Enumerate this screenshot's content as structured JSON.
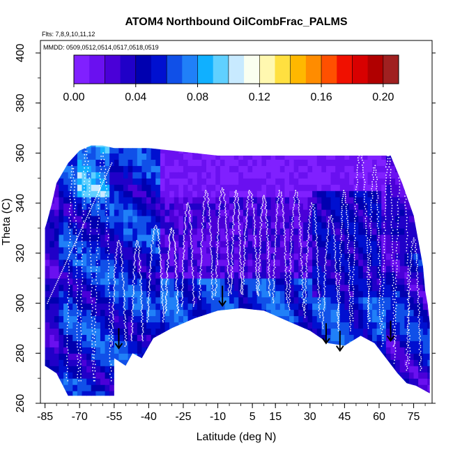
{
  "chart_data": {
    "type": "heatmap",
    "title": "ATOM4 Northbound OilCombFrac_PALMS",
    "subtitle_flights": "Flts: 7,8,9,10,11,12",
    "subtitle_dates": "MMDD: 0509,0512,0514,0517,0518,0519",
    "xlabel": "Latitude (deg N)",
    "ylabel": "Theta (C)",
    "xlim": [
      -87,
      83
    ],
    "ylim": [
      260,
      405
    ],
    "x_ticks": [
      -85,
      -70,
      -55,
      -40,
      -25,
      -10,
      5,
      15,
      30,
      45,
      60,
      75
    ],
    "x_tick_labels": [
      "-85",
      "-70",
      "-55",
      "-40",
      "-25",
      "-10",
      "5",
      "15",
      "30",
      "45",
      "60",
      "75"
    ],
    "y_ticks": [
      260,
      280,
      300,
      320,
      340,
      360,
      380,
      400
    ],
    "y_tick_labels": [
      "260",
      "280",
      "300",
      "320",
      "340",
      "360",
      "380",
      "400"
    ],
    "colorbar": {
      "range": [
        0.0,
        0.21
      ],
      "tick_values": [
        0.0,
        0.04,
        0.08,
        0.12,
        0.16,
        0.2
      ],
      "tick_labels": [
        "0.00",
        "0.04",
        "0.08",
        "0.12",
        "0.16",
        "0.20"
      ],
      "colors": [
        "#8020ff",
        "#6a10f0",
        "#4a00d8",
        "#2000c8",
        "#0000b0",
        "#0010d0",
        "#1050e8",
        "#2080f8",
        "#10b0ff",
        "#60d0ff",
        "#c8eaff",
        "#fafff0",
        "#fff8b0",
        "#ffe040",
        "#ffb800",
        "#ff8c00",
        "#ff5000",
        "#f01000",
        "#d80000",
        "#b00000",
        "#a02020"
      ]
    },
    "domain_upper": [
      [
        -85,
        330
      ],
      [
        -84,
        333
      ],
      [
        -82,
        340
      ],
      [
        -80,
        348
      ],
      [
        -75,
        356
      ],
      [
        -70,
        361
      ],
      [
        -65,
        363
      ],
      [
        -60,
        363
      ],
      [
        -55,
        362
      ],
      [
        -50,
        362
      ],
      [
        -40,
        362
      ],
      [
        -30,
        361
      ],
      [
        -20,
        360
      ],
      [
        -10,
        359
      ],
      [
        0,
        359
      ],
      [
        10,
        359
      ],
      [
        20,
        359
      ],
      [
        30,
        359
      ],
      [
        35,
        359
      ],
      [
        40,
        359
      ],
      [
        50,
        359
      ],
      [
        65,
        359
      ],
      [
        70,
        348
      ],
      [
        75,
        335
      ],
      [
        78,
        320
      ],
      [
        79,
        315
      ],
      [
        80,
        305
      ],
      [
        81,
        300
      ],
      [
        82,
        292
      ],
      [
        82,
        264
      ]
    ],
    "domain_lower": [
      [
        -85,
        330
      ],
      [
        -85,
        275
      ],
      [
        -80,
        272
      ],
      [
        -75,
        263
      ],
      [
        -68,
        263
      ],
      [
        -55,
        263
      ],
      [
        -55,
        278
      ],
      [
        -50,
        275
      ],
      [
        -47,
        280
      ],
      [
        -43,
        278
      ],
      [
        -38,
        286
      ],
      [
        -30,
        290
      ],
      [
        -20,
        294
      ],
      [
        -10,
        297
      ],
      [
        0,
        298
      ],
      [
        10,
        297
      ],
      [
        20,
        293
      ],
      [
        30,
        289
      ],
      [
        38,
        284
      ],
      [
        45,
        283
      ],
      [
        52,
        287
      ],
      [
        58,
        284
      ],
      [
        63,
        278
      ],
      [
        68,
        272
      ],
      [
        72,
        268
      ],
      [
        76,
        267
      ],
      [
        82,
        264
      ]
    ],
    "profile_tops": [
      -73,
      355,
      -67,
      362,
      -60,
      360,
      -53,
      325,
      -45,
      325,
      -37,
      331,
      -30,
      330,
      -23,
      340,
      -15,
      345,
      -8,
      346,
      -2,
      345,
      4,
      345,
      10,
      343,
      17,
      345,
      24,
      345,
      31,
      340,
      39,
      335,
      45,
      345,
      52,
      361,
      58,
      355,
      64,
      360,
      70,
      361,
      75,
      326
    ],
    "arrows": [
      [
        -53,
        282
      ],
      [
        -8,
        299
      ],
      [
        37,
        284
      ],
      [
        43,
        281
      ],
      [
        65,
        285
      ]
    ]
  }
}
